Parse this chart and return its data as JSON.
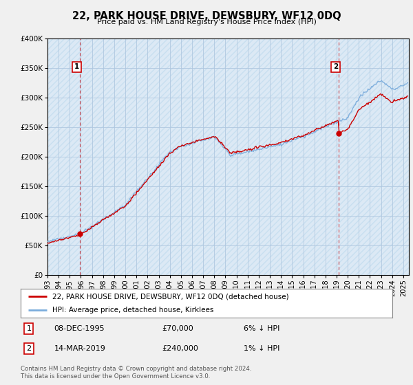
{
  "title": "22, PARK HOUSE DRIVE, DEWSBURY, WF12 0DQ",
  "subtitle": "Price paid vs. HM Land Registry's House Price Index (HPI)",
  "legend_line1": "22, PARK HOUSE DRIVE, DEWSBURY, WF12 0DQ (detached house)",
  "legend_line2": "HPI: Average price, detached house, Kirklees",
  "footer1": "Contains HM Land Registry data © Crown copyright and database right 2024.",
  "footer2": "This data is licensed under the Open Government Licence v3.0.",
  "sale1_label": "1",
  "sale1_date": "08-DEC-1995",
  "sale1_price": "£70,000",
  "sale1_hpi": "6% ↓ HPI",
  "sale2_label": "2",
  "sale2_date": "14-MAR-2019",
  "sale2_price": "£240,000",
  "sale2_hpi": "1% ↓ HPI",
  "sale1_year": 1995.92,
  "sale1_value": 70000,
  "sale2_year": 2019.2,
  "sale2_value": 240000,
  "ylim": [
    0,
    400000
  ],
  "xlim_start": 1993,
  "xlim_end": 2025.5,
  "hpi_color": "#7aacdc",
  "sale_color": "#cc0000",
  "dashed_line_color": "#cc0000",
  "background_color": "#f0f0f0",
  "plot_bg_color": "#dce9f5",
  "grid_color": "#b0c8e0",
  "hatch_color": "#c8dff0"
}
